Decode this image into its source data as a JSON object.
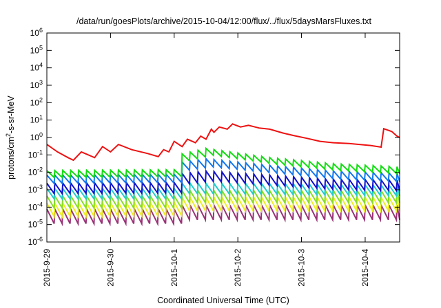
{
  "chart_data": {
    "type": "line",
    "title": "/data/run/goesPlots/archive/2015-10-04/12:00/flux/../flux/5daysMarsFluxes.txt",
    "xlabel": "Coordinated Universal Time (UTC)",
    "ylabel": {
      "prefix": "protons/cm",
      "sup": "2",
      "suffix": "-s-sr-MeV"
    },
    "yscale": "log",
    "ylim": [
      1e-06,
      1000000.0
    ],
    "yticks": [
      {
        "base": "10",
        "exp": "-6",
        "value": 1e-06
      },
      {
        "base": "10",
        "exp": "-5",
        "value": 1e-05
      },
      {
        "base": "10",
        "exp": "-4",
        "value": 0.0001
      },
      {
        "base": "10",
        "exp": "-3",
        "value": 0.001
      },
      {
        "base": "10",
        "exp": "-2",
        "value": 0.01
      },
      {
        "base": "10",
        "exp": "-1",
        "value": 0.1
      },
      {
        "base": "10",
        "exp": "0",
        "value": 1
      },
      {
        "base": "10",
        "exp": "1",
        "value": 10
      },
      {
        "base": "10",
        "exp": "2",
        "value": 100
      },
      {
        "base": "10",
        "exp": "3",
        "value": 1000
      },
      {
        "base": "10",
        "exp": "4",
        "value": 10000
      },
      {
        "base": "10",
        "exp": "5",
        "value": 100000
      },
      {
        "base": "10",
        "exp": "6",
        "value": 1000000
      }
    ],
    "xlim": [
      "2015-09-29T00:00",
      "2015-10-04T13:00"
    ],
    "xticks": [
      "2015-9-29",
      "2015-9-30",
      "2015-10-1",
      "2015-10-2",
      "2015-10-3",
      "2015-10-4"
    ],
    "grid": false,
    "series": [
      {
        "color": "#ee1111",
        "points": [
          [
            "2015-09-29T00:00",
            0.4
          ],
          [
            "2015-09-29T04:00",
            0.15
          ],
          [
            "2015-09-29T08:00",
            0.07
          ],
          [
            "2015-09-29T10:00",
            0.05
          ],
          [
            "2015-09-29T13:00",
            0.15
          ],
          [
            "2015-09-29T18:00",
            0.07
          ],
          [
            "2015-09-29T21:00",
            0.3
          ],
          [
            "2015-09-30T00:00",
            0.15
          ],
          [
            "2015-09-30T03:00",
            0.4
          ],
          [
            "2015-09-30T08:00",
            0.2
          ],
          [
            "2015-09-30T14:00",
            0.12
          ],
          [
            "2015-09-30T18:00",
            0.08
          ],
          [
            "2015-09-30T20:00",
            0.2
          ],
          [
            "2015-09-30T22:00",
            0.15
          ],
          [
            "2015-10-01T00:00",
            0.6
          ],
          [
            "2015-10-01T03:00",
            0.3
          ],
          [
            "2015-10-01T05:00",
            0.8
          ],
          [
            "2015-10-01T08:00",
            0.5
          ],
          [
            "2015-10-01T10:00",
            1.2
          ],
          [
            "2015-10-01T12:00",
            0.8
          ],
          [
            "2015-10-01T14:00",
            3
          ],
          [
            "2015-10-01T15:00",
            2
          ],
          [
            "2015-10-01T17:00",
            4
          ],
          [
            "2015-10-01T20:00",
            3
          ],
          [
            "2015-10-01T22:00",
            6
          ],
          [
            "2015-10-02T01:00",
            4
          ],
          [
            "2015-10-02T04:00",
            5
          ],
          [
            "2015-10-02T08:00",
            3.5
          ],
          [
            "2015-10-02T12:00",
            3
          ],
          [
            "2015-10-02T17:00",
            1.8
          ],
          [
            "2015-10-02T21:00",
            1.3
          ],
          [
            "2015-10-03T02:00",
            0.9
          ],
          [
            "2015-10-03T07:00",
            0.6
          ],
          [
            "2015-10-03T12:00",
            0.5
          ],
          [
            "2015-10-03T18:00",
            0.45
          ],
          [
            "2015-10-04T02:00",
            0.35
          ],
          [
            "2015-10-04T06:00",
            0.28
          ],
          [
            "2015-10-04T07:00",
            3.2
          ],
          [
            "2015-10-04T10:00",
            2.2
          ],
          [
            "2015-10-04T12:00",
            1.2
          ],
          [
            "2015-10-04T13:00",
            1.0
          ]
        ]
      },
      {
        "color": "#11dd11",
        "base": [
          [
            "2015-09-29T00:00",
            0.008
          ],
          [
            "2015-10-01T00:00",
            0.009
          ],
          [
            "2015-10-01T00:30",
            0.06
          ],
          [
            "2015-10-01T12:00",
            0.15
          ],
          [
            "2015-10-02T12:00",
            0.045
          ],
          [
            "2015-10-03T12:00",
            0.02
          ],
          [
            "2015-10-04T13:00",
            0.013
          ]
        ],
        "amp": 2.5
      },
      {
        "color": "#1177ee",
        "base": [
          [
            "2015-09-29T00:00",
            0.004
          ],
          [
            "2015-10-01T00:00",
            0.0045
          ],
          [
            "2015-10-01T00:30",
            0.02
          ],
          [
            "2015-10-01T12:00",
            0.035
          ],
          [
            "2015-10-02T12:00",
            0.015
          ],
          [
            "2015-10-03T12:00",
            0.007
          ],
          [
            "2015-10-04T13:00",
            0.005
          ]
        ],
        "amp": 3
      },
      {
        "color": "#1111cc",
        "base": [
          [
            "2015-09-29T00:00",
            0.0012
          ],
          [
            "2015-10-01T00:00",
            0.0013
          ],
          [
            "2015-10-01T00:30",
            0.004
          ],
          [
            "2015-10-01T12:00",
            0.006
          ],
          [
            "2015-10-02T12:00",
            0.0035
          ],
          [
            "2015-10-03T12:00",
            0.002
          ],
          [
            "2015-10-04T13:00",
            0.0018
          ]
        ],
        "amp": 4
      },
      {
        "color": "#22cccc",
        "base": [
          [
            "2015-09-29T00:00",
            0.0006
          ],
          [
            "2015-10-01T00:00",
            0.0006
          ],
          [
            "2015-10-01T00:30",
            0.0012
          ],
          [
            "2015-10-02T12:00",
            0.0011
          ],
          [
            "2015-10-04T13:00",
            0.0009
          ]
        ],
        "amp": 4
      },
      {
        "color": "#88dd22",
        "base": [
          [
            "2015-09-29T00:00",
            0.0002
          ],
          [
            "2015-10-01T00:00",
            0.0002
          ],
          [
            "2015-10-01T00:30",
            0.0004
          ],
          [
            "2015-10-04T13:00",
            0.0004
          ]
        ],
        "amp": 5
      },
      {
        "color": "#eeee22",
        "base": [
          [
            "2015-09-29T00:00",
            7e-05
          ],
          [
            "2015-10-01T00:00",
            8e-05
          ],
          [
            "2015-10-01T00:30",
            0.00015
          ],
          [
            "2015-10-04T13:00",
            0.00015
          ]
        ],
        "amp": 6
      },
      {
        "color": "#993377",
        "base": [
          [
            "2015-09-29T00:00",
            3e-05
          ],
          [
            "2015-10-01T00:00",
            3e-05
          ],
          [
            "2015-10-01T00:30",
            5e-05
          ],
          [
            "2015-10-04T13:00",
            5e-05
          ]
        ],
        "amp": 7
      }
    ]
  }
}
